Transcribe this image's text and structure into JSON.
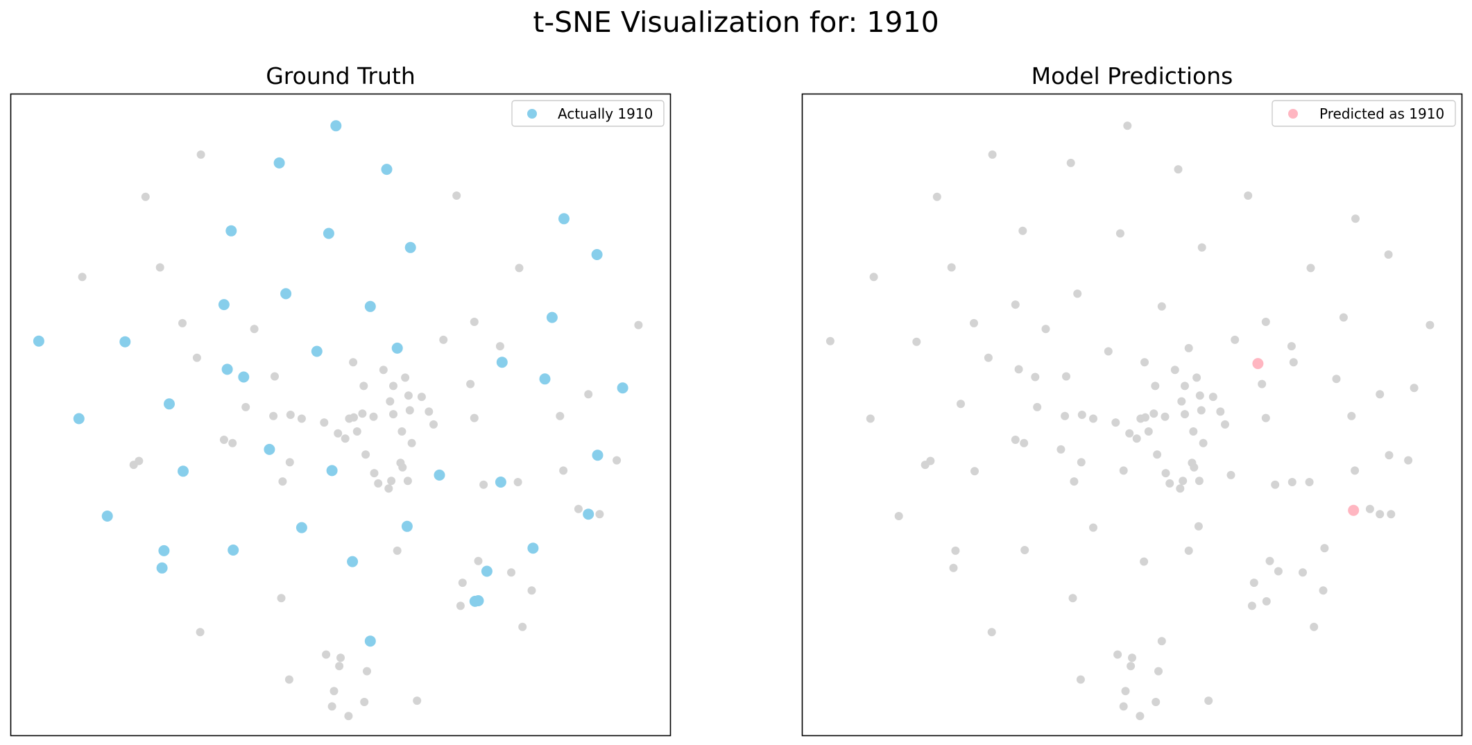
{
  "figure": {
    "suptitle": "t-SNE Visualization for: 1910"
  },
  "chart_data": [
    {
      "type": "scatter",
      "title": "Ground Truth",
      "xlabel": "",
      "ylabel": "",
      "xlim": [
        0,
        1000
      ],
      "ylim": [
        0,
        1000
      ],
      "ticks": false,
      "legend": {
        "position": "top-right",
        "entries": [
          "Actually 1910"
        ]
      },
      "series": [
        {
          "name": "",
          "color": "#d3d3d3",
          "points": [
            [
              288,
              906
            ],
            [
              204,
              840
            ],
            [
              676,
              842
            ],
            [
              108,
              715
            ],
            [
              226,
              730
            ],
            [
              260,
              643
            ],
            [
              369,
              634
            ],
            [
              656,
              617
            ],
            [
              282,
              589
            ],
            [
              519,
              582
            ],
            [
              565,
              570
            ],
            [
              598,
              558
            ],
            [
              603,
              530
            ],
            [
              580,
              545
            ],
            [
              580,
              501
            ],
            [
              535,
              545
            ],
            [
              605,
              507
            ],
            [
              575,
              521
            ],
            [
              703,
              645
            ],
            [
              771,
              729
            ],
            [
              952,
              640
            ],
            [
              876,
              532
            ],
            [
              833,
              498
            ],
            [
              703,
              495
            ],
            [
              742,
              607
            ],
            [
              697,
              548
            ],
            [
              623,
              528
            ],
            [
              634,
              505
            ],
            [
              550,
              497
            ],
            [
              533,
              502
            ],
            [
              513,
              494
            ],
            [
              441,
              494
            ],
            [
              398,
              498
            ],
            [
              424,
              500
            ],
            [
              400,
              560
            ],
            [
              356,
              512
            ],
            [
              323,
              461
            ],
            [
              194,
              428
            ],
            [
              186,
              422
            ],
            [
              423,
              426
            ],
            [
              412,
              396
            ],
            [
              577,
              397
            ],
            [
              591,
              425
            ],
            [
              593,
              474
            ],
            [
              608,
              456
            ],
            [
              641,
              485
            ],
            [
              717,
              391
            ],
            [
              769,
              395
            ],
            [
              838,
              413
            ],
            [
              861,
              353
            ],
            [
              919,
              429
            ],
            [
              893,
              345
            ],
            [
              586,
              288
            ],
            [
              685,
              238
            ],
            [
              410,
              214
            ],
            [
              500,
              121
            ],
            [
              287,
              161
            ],
            [
              478,
              126
            ],
            [
              490,
              69
            ],
            [
              487,
              45
            ],
            [
              540,
              100
            ],
            [
              498,
              108
            ],
            [
              422,
              87
            ],
            [
              536,
              52
            ],
            [
              512,
              30
            ],
            [
              616,
              54
            ],
            [
              776,
              169
            ],
            [
              790,
              226
            ],
            [
              759,
              254
            ],
            [
              682,
              202
            ],
            [
              709,
              272
            ],
            [
              602,
              397
            ],
            [
              557,
              393
            ],
            [
              538,
              438
            ],
            [
              551,
              409
            ],
            [
              496,
              471
            ],
            [
              507,
              463
            ],
            [
              475,
              488
            ],
            [
              525,
              474
            ],
            [
              520,
              496
            ],
            [
              594,
              418
            ],
            [
              573,
              385
            ],
            [
              336,
              456
            ]
          ]
        },
        {
          "name": "Actually 1910",
          "color": "#87ceeb",
          "points": [
            [
              493,
              951
            ],
            [
              407,
              893
            ],
            [
              570,
              883
            ],
            [
              334,
              787
            ],
            [
              482,
              783
            ],
            [
              606,
              761
            ],
            [
              839,
              806
            ],
            [
              889,
              750
            ],
            [
              42,
              615
            ],
            [
              173,
              614
            ],
            [
              821,
              652
            ],
            [
              323,
              672
            ],
            [
              417,
              689
            ],
            [
              545,
              669
            ],
            [
              328,
              571
            ],
            [
              464,
              599
            ],
            [
              586,
              604
            ],
            [
              745,
              582
            ],
            [
              810,
              556
            ],
            [
              928,
              542
            ],
            [
              240,
              517
            ],
            [
              103,
              494
            ],
            [
              890,
              437
            ],
            [
              353,
              559
            ],
            [
              261,
              412
            ],
            [
              392,
              446
            ],
            [
              487,
              413
            ],
            [
              650,
              406
            ],
            [
              743,
              395
            ],
            [
              146,
              342
            ],
            [
              232,
              288
            ],
            [
              337,
              289
            ],
            [
              441,
              324
            ],
            [
              518,
              271
            ],
            [
              601,
              326
            ],
            [
              722,
              256
            ],
            [
              792,
              292
            ],
            [
              876,
              345
            ],
            [
              229,
              261
            ],
            [
              545,
              147
            ],
            [
              704,
              209
            ],
            [
              709,
              210
            ]
          ]
        }
      ]
    },
    {
      "type": "scatter",
      "title": "Model Predictions",
      "xlabel": "",
      "ylabel": "",
      "xlim": [
        0,
        1000
      ],
      "ylim": [
        0,
        1000
      ],
      "ticks": false,
      "legend": {
        "position": "top-right",
        "entries": [
          "Predicted as 1910"
        ]
      },
      "series": [
        {
          "name": "",
          "color": "#d3d3d3",
          "points": [
            [
              493,
              951
            ],
            [
              288,
              906
            ],
            [
              407,
              893
            ],
            [
              570,
              883
            ],
            [
              204,
              840
            ],
            [
              334,
              787
            ],
            [
              482,
              783
            ],
            [
              606,
              761
            ],
            [
              839,
              806
            ],
            [
              676,
              842
            ],
            [
              889,
              750
            ],
            [
              108,
              715
            ],
            [
              226,
              730
            ],
            [
              42,
              615
            ],
            [
              173,
              614
            ],
            [
              821,
              652
            ],
            [
              323,
              672
            ],
            [
              417,
              689
            ],
            [
              545,
              669
            ],
            [
              260,
              643
            ],
            [
              369,
              634
            ],
            [
              656,
              617
            ],
            [
              282,
              589
            ],
            [
              328,
              571
            ],
            [
              464,
              599
            ],
            [
              519,
              582
            ],
            [
              565,
              570
            ],
            [
              586,
              604
            ],
            [
              598,
              558
            ],
            [
              603,
              530
            ],
            [
              580,
              545
            ],
            [
              580,
              501
            ],
            [
              535,
              545
            ],
            [
              605,
              507
            ],
            [
              575,
              521
            ],
            [
              745,
              582
            ],
            [
              703,
              645
            ],
            [
              771,
              729
            ],
            [
              810,
              556
            ],
            [
              928,
              542
            ],
            [
              952,
              640
            ],
            [
              876,
              532
            ],
            [
              833,
              498
            ],
            [
              703,
              495
            ],
            [
              742,
              607
            ],
            [
              697,
              548
            ],
            [
              623,
              528
            ],
            [
              634,
              505
            ],
            [
              550,
              497
            ],
            [
              533,
              502
            ],
            [
              513,
              494
            ],
            [
              441,
              494
            ],
            [
              398,
              498
            ],
            [
              424,
              500
            ],
            [
              240,
              517
            ],
            [
              103,
              494
            ],
            [
              400,
              560
            ],
            [
              353,
              559
            ],
            [
              356,
              512
            ],
            [
              261,
              412
            ],
            [
              323,
              461
            ],
            [
              392,
              446
            ],
            [
              194,
              428
            ],
            [
              186,
              422
            ],
            [
              423,
              426
            ],
            [
              412,
              396
            ],
            [
              487,
              413
            ],
            [
              577,
              397
            ],
            [
              591,
              425
            ],
            [
              650,
              406
            ],
            [
              593,
              474
            ],
            [
              608,
              456
            ],
            [
              641,
              485
            ],
            [
              717,
              391
            ],
            [
              743,
              395
            ],
            [
              769,
              395
            ],
            [
              838,
              413
            ],
            [
              890,
              437
            ],
            [
              861,
              353
            ],
            [
              919,
              429
            ],
            [
              893,
              345
            ],
            [
              146,
              342
            ],
            [
              232,
              288
            ],
            [
              337,
              289
            ],
            [
              441,
              324
            ],
            [
              518,
              271
            ],
            [
              586,
              288
            ],
            [
              601,
              326
            ],
            [
              685,
              238
            ],
            [
              722,
              256
            ],
            [
              792,
              292
            ],
            [
              876,
              345
            ],
            [
              410,
              214
            ],
            [
              229,
              261
            ],
            [
              500,
              121
            ],
            [
              287,
              161
            ],
            [
              478,
              126
            ],
            [
              490,
              69
            ],
            [
              487,
              45
            ],
            [
              540,
              100
            ],
            [
              498,
              108
            ],
            [
              422,
              87
            ],
            [
              536,
              52
            ],
            [
              512,
              30
            ],
            [
              545,
              147
            ],
            [
              616,
              54
            ],
            [
              704,
              209
            ],
            [
              776,
              169
            ],
            [
              790,
              226
            ],
            [
              759,
              254
            ],
            [
              682,
              202
            ],
            [
              709,
              272
            ],
            [
              602,
              397
            ],
            [
              557,
              393
            ],
            [
              538,
              438
            ],
            [
              551,
              409
            ],
            [
              496,
              471
            ],
            [
              507,
              463
            ],
            [
              475,
              488
            ],
            [
              525,
              474
            ],
            [
              520,
              496
            ],
            [
              594,
              418
            ],
            [
              573,
              385
            ],
            [
              336,
              456
            ]
          ]
        },
        {
          "name": "Predicted as 1910",
          "color": "#ffb6c1",
          "points": [
            [
              691,
              580
            ],
            [
              836,
              351
            ]
          ]
        }
      ]
    }
  ]
}
